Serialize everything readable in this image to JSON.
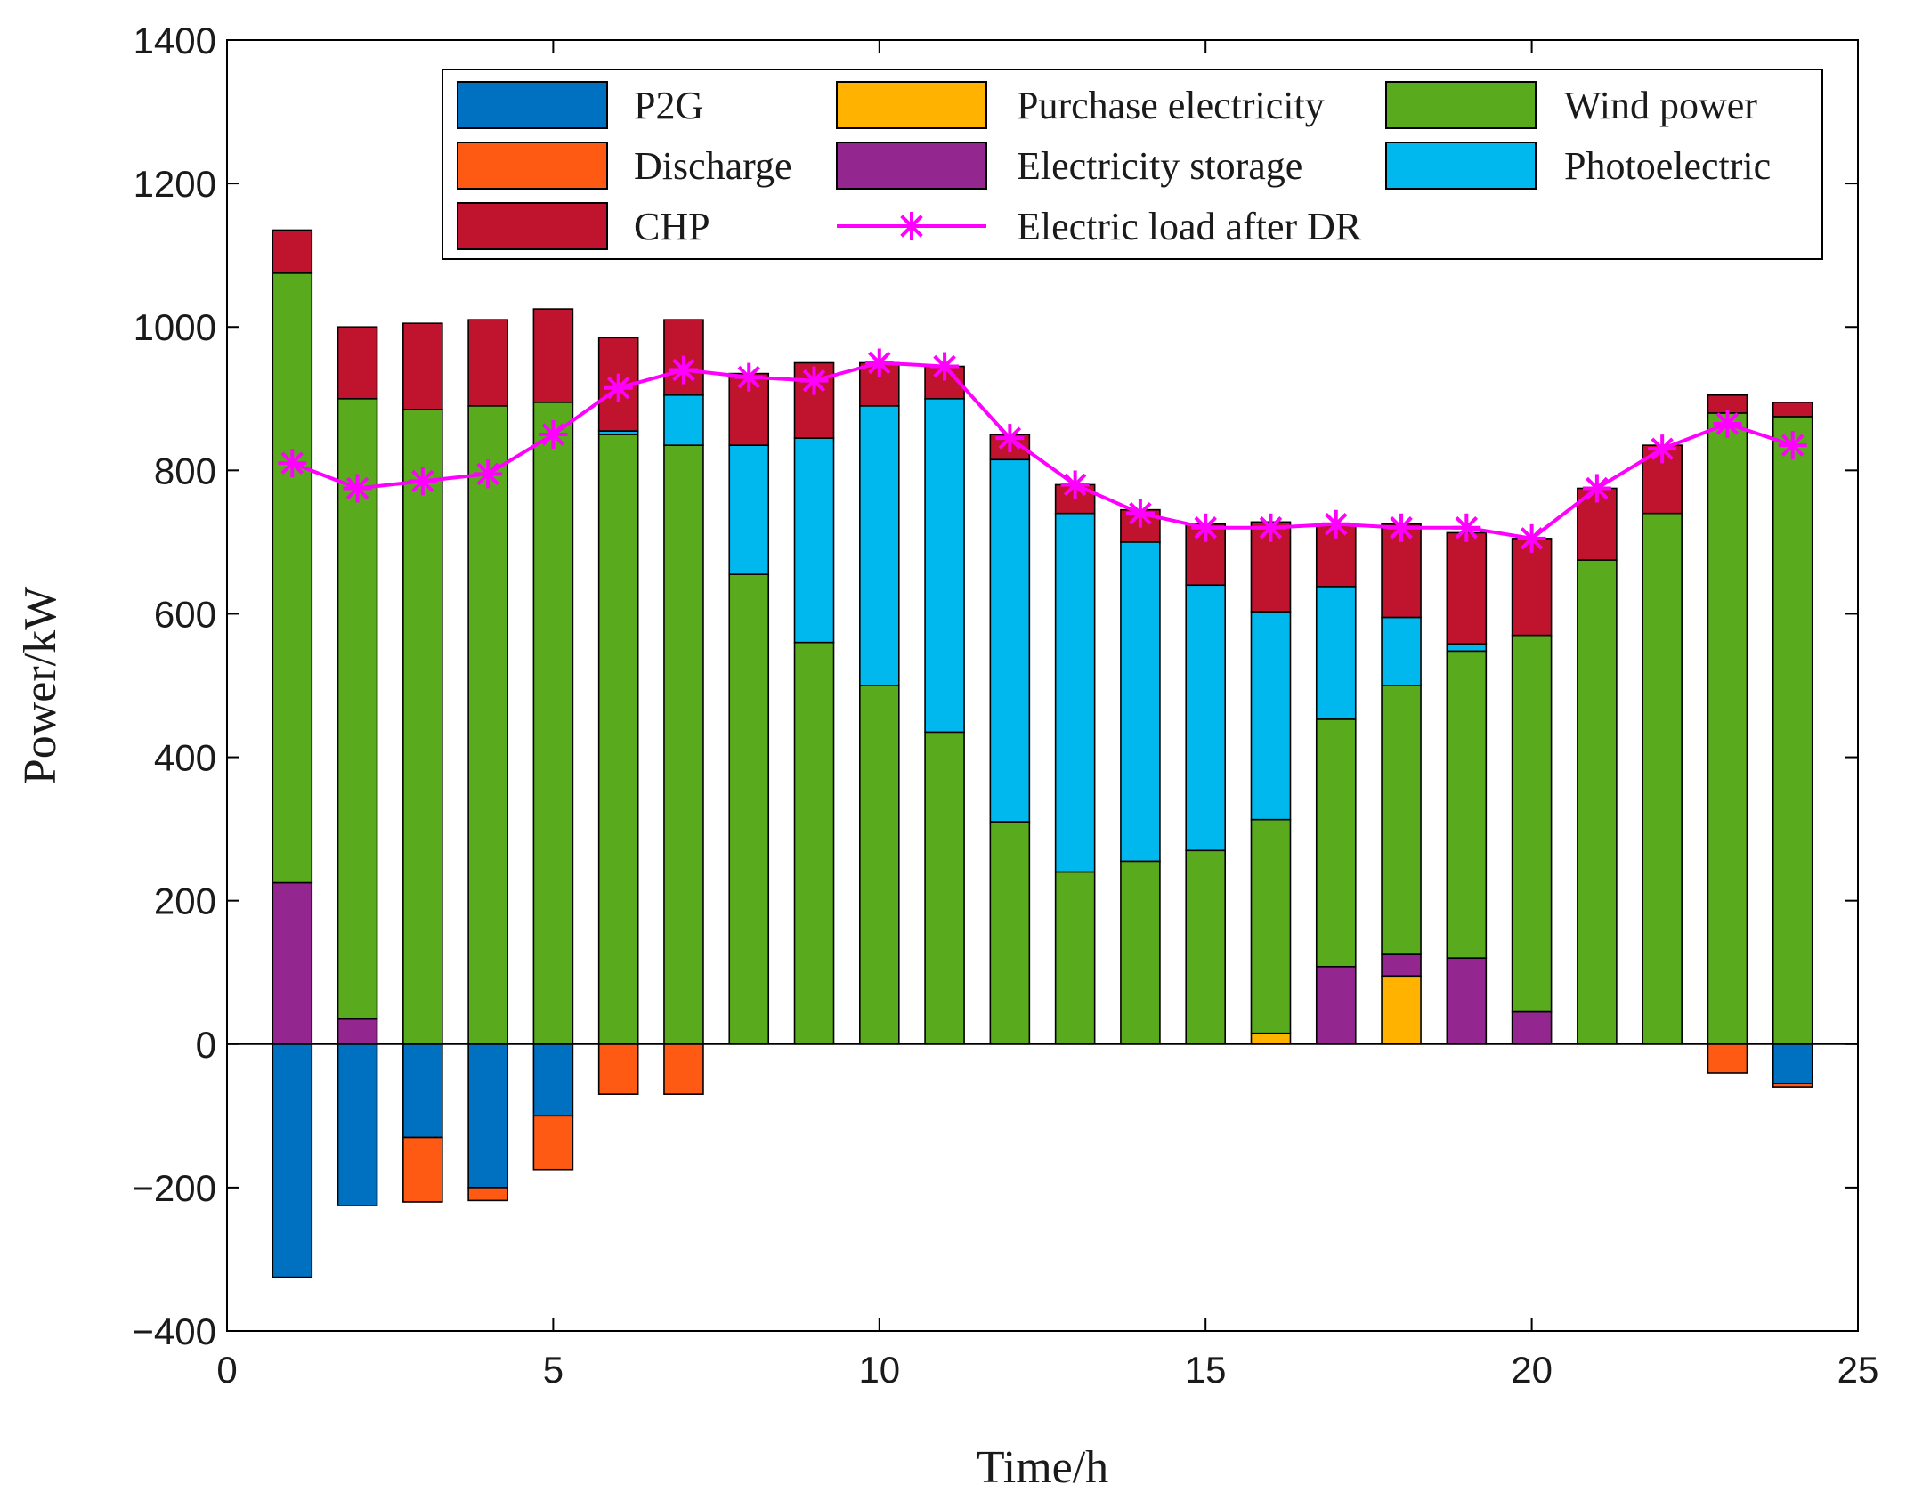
{
  "chart_data": {
    "type": "bar",
    "stacked": true,
    "title": "",
    "xlabel": "Time/h",
    "ylabel": "Power/kW",
    "xlim": [
      0,
      25
    ],
    "ylim": [
      -400,
      1400
    ],
    "xticks": [
      0,
      5,
      10,
      15,
      20,
      25
    ],
    "yticks": [
      -400,
      -200,
      0,
      200,
      400,
      600,
      800,
      1000,
      1200,
      1400
    ],
    "ytick_labels": [
      "−400",
      "−200",
      "0",
      "200",
      "400",
      "600",
      "800",
      "1000",
      "1200",
      "1400"
    ],
    "x": [
      1,
      2,
      3,
      4,
      5,
      6,
      7,
      8,
      9,
      10,
      11,
      12,
      13,
      14,
      15,
      16,
      17,
      18,
      19,
      20,
      21,
      22,
      23,
      24
    ],
    "positive_stack_order": [
      "Purchase electricity",
      "Electricity storage",
      "Wind power",
      "Photoelectric",
      "CHP"
    ],
    "negative_stack_order": [
      "P2G",
      "Discharge"
    ],
    "series": [
      {
        "name": "P2G",
        "color": "#0070C0",
        "values": [
          -325,
          -225,
          -130,
          -200,
          -100,
          0,
          0,
          0,
          0,
          0,
          0,
          0,
          0,
          0,
          0,
          0,
          0,
          0,
          0,
          0,
          0,
          0,
          0,
          -55
        ]
      },
      {
        "name": "Discharge",
        "color": "#FF5A14",
        "values": [
          0,
          0,
          -90,
          -18,
          -75,
          -70,
          -70,
          0,
          0,
          0,
          0,
          0,
          0,
          0,
          0,
          0,
          0,
          0,
          0,
          0,
          0,
          0,
          -40,
          -5
        ]
      },
      {
        "name": "CHP",
        "color": "#C0142E",
        "values": [
          60,
          100,
          120,
          120,
          130,
          130,
          105,
          100,
          105,
          60,
          45,
          35,
          40,
          45,
          85,
          125,
          85,
          130,
          155,
          135,
          100,
          95,
          25,
          20
        ]
      },
      {
        "name": "Purchase electricity",
        "color": "#FFB300",
        "values": [
          0,
          0,
          0,
          0,
          0,
          0,
          0,
          0,
          0,
          0,
          0,
          0,
          0,
          0,
          0,
          15,
          0,
          95,
          0,
          0,
          0,
          0,
          0,
          0
        ]
      },
      {
        "name": "Electricity storage",
        "color": "#93278F",
        "values": [
          225,
          35,
          0,
          0,
          0,
          0,
          0,
          0,
          0,
          0,
          0,
          0,
          0,
          0,
          0,
          0,
          108,
          30,
          120,
          45,
          0,
          0,
          0,
          0
        ]
      },
      {
        "name": "Photoelectric",
        "color": "#00B8EE",
        "values": [
          0,
          0,
          0,
          0,
          0,
          5,
          70,
          180,
          285,
          390,
          465,
          505,
          500,
          445,
          370,
          290,
          185,
          95,
          10,
          0,
          0,
          0,
          0,
          0
        ]
      },
      {
        "name": "Wind power",
        "color": "#5AAA1E",
        "values": [
          850,
          865,
          885,
          890,
          895,
          850,
          835,
          655,
          560,
          500,
          435,
          310,
          240,
          255,
          270,
          298,
          345,
          375,
          428,
          525,
          675,
          740,
          880,
          875
        ]
      },
      {
        "name": "Electric load after DR",
        "color": "#FF00FF",
        "type": "line",
        "marker": "asterisk",
        "values": [
          810,
          775,
          785,
          795,
          850,
          915,
          940,
          930,
          925,
          950,
          945,
          845,
          780,
          740,
          720,
          720,
          725,
          720,
          720,
          705,
          775,
          830,
          865,
          835
        ]
      }
    ],
    "legend": {
      "location": "top-right",
      "columns": 3,
      "entries": [
        {
          "label": "P2G",
          "color": "#0070C0",
          "kind": "patch"
        },
        {
          "label": "Purchase electricity",
          "color": "#FFB300",
          "kind": "patch"
        },
        {
          "label": "Wind power",
          "color": "#5AAA1E",
          "kind": "patch"
        },
        {
          "label": "Discharge",
          "color": "#FF5A14",
          "kind": "patch"
        },
        {
          "label": "Electricity storage",
          "color": "#93278F",
          "kind": "patch"
        },
        {
          "label": "Photoelectric",
          "color": "#00B8EE",
          "kind": "patch"
        },
        {
          "label": "CHP",
          "color": "#C0142E",
          "kind": "patch"
        },
        {
          "label": "Electric load after DR",
          "color": "#FF00FF",
          "kind": "line"
        }
      ]
    },
    "grid": false
  }
}
